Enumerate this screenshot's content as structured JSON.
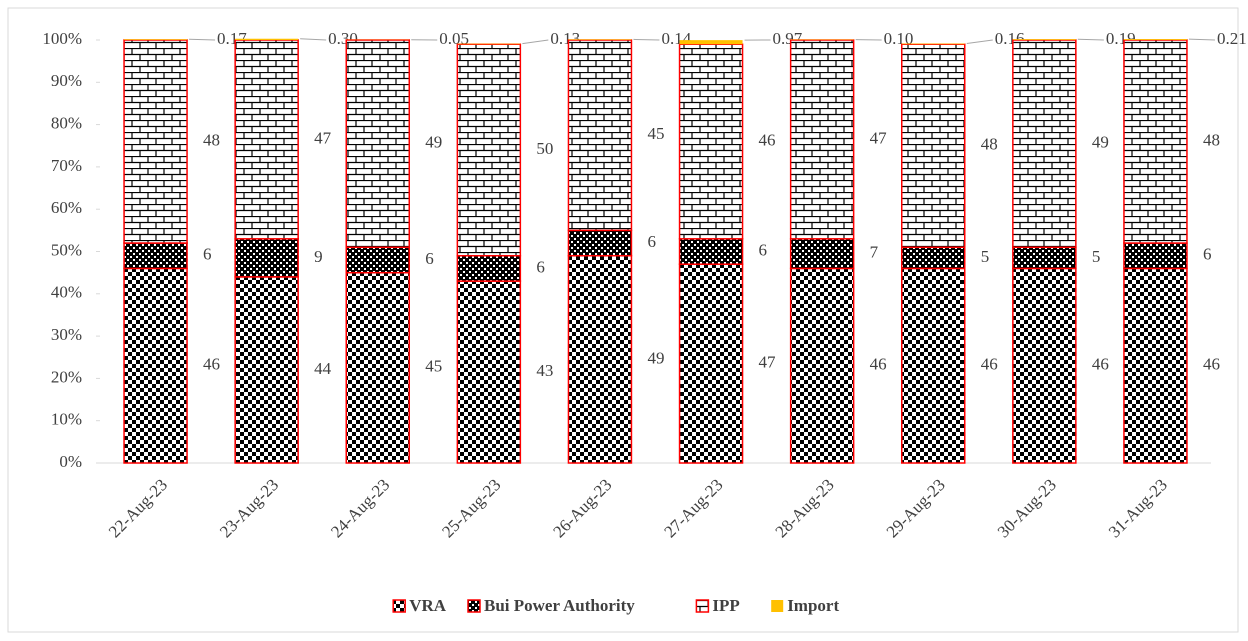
{
  "chart_data": {
    "type": "stacked_bar_100",
    "categories": [
      "22-Aug-23",
      "23-Aug-23",
      "24-Aug-23",
      "25-Aug-23",
      "26-Aug-23",
      "27-Aug-23",
      "28-Aug-23",
      "29-Aug-23",
      "30-Aug-23",
      "31-Aug-23"
    ],
    "series": [
      {
        "name": "VRA",
        "color": "#000000",
        "pattern": "checker",
        "values": [
          46,
          44,
          45,
          43,
          49,
          47,
          46,
          46,
          46,
          46
        ]
      },
      {
        "name": "Bui Power Authority",
        "color": "#000000",
        "pattern": "crosshatch",
        "values": [
          6,
          9,
          6,
          6,
          6,
          6,
          7,
          5,
          5,
          6
        ]
      },
      {
        "name": "IPP",
        "color": "#000000",
        "pattern": "brick",
        "values": [
          48,
          47,
          49,
          50,
          45,
          46,
          47,
          48,
          49,
          48
        ]
      },
      {
        "name": "Import",
        "color": "#ffc000",
        "pattern": "solid",
        "values": [
          0.17,
          0.3,
          0.05,
          0.13,
          0.14,
          0.97,
          0.1,
          0.16,
          0.19,
          0.21
        ],
        "value_labels": [
          "0.17",
          "0.30",
          "0.05",
          "0.13",
          "0.14",
          "0.97",
          "0.10",
          "0.16",
          "0.19",
          "0.21"
        ]
      }
    ],
    "border_color": "#ff0000",
    "ylim": [
      0,
      100
    ],
    "yticks": [
      {
        "value": 0,
        "label": "0%"
      },
      {
        "value": 10,
        "label": "10%"
      },
      {
        "value": 20,
        "label": "20%"
      },
      {
        "value": 30,
        "label": "30%"
      },
      {
        "value": 40,
        "label": "40%"
      },
      {
        "value": 50,
        "label": "50%"
      },
      {
        "value": 60,
        "label": "60%"
      },
      {
        "value": 70,
        "label": "70%"
      },
      {
        "value": 80,
        "label": "80%"
      },
      {
        "value": 90,
        "label": "90%"
      },
      {
        "value": 100,
        "label": "100%"
      }
    ],
    "legend": "bottom"
  }
}
